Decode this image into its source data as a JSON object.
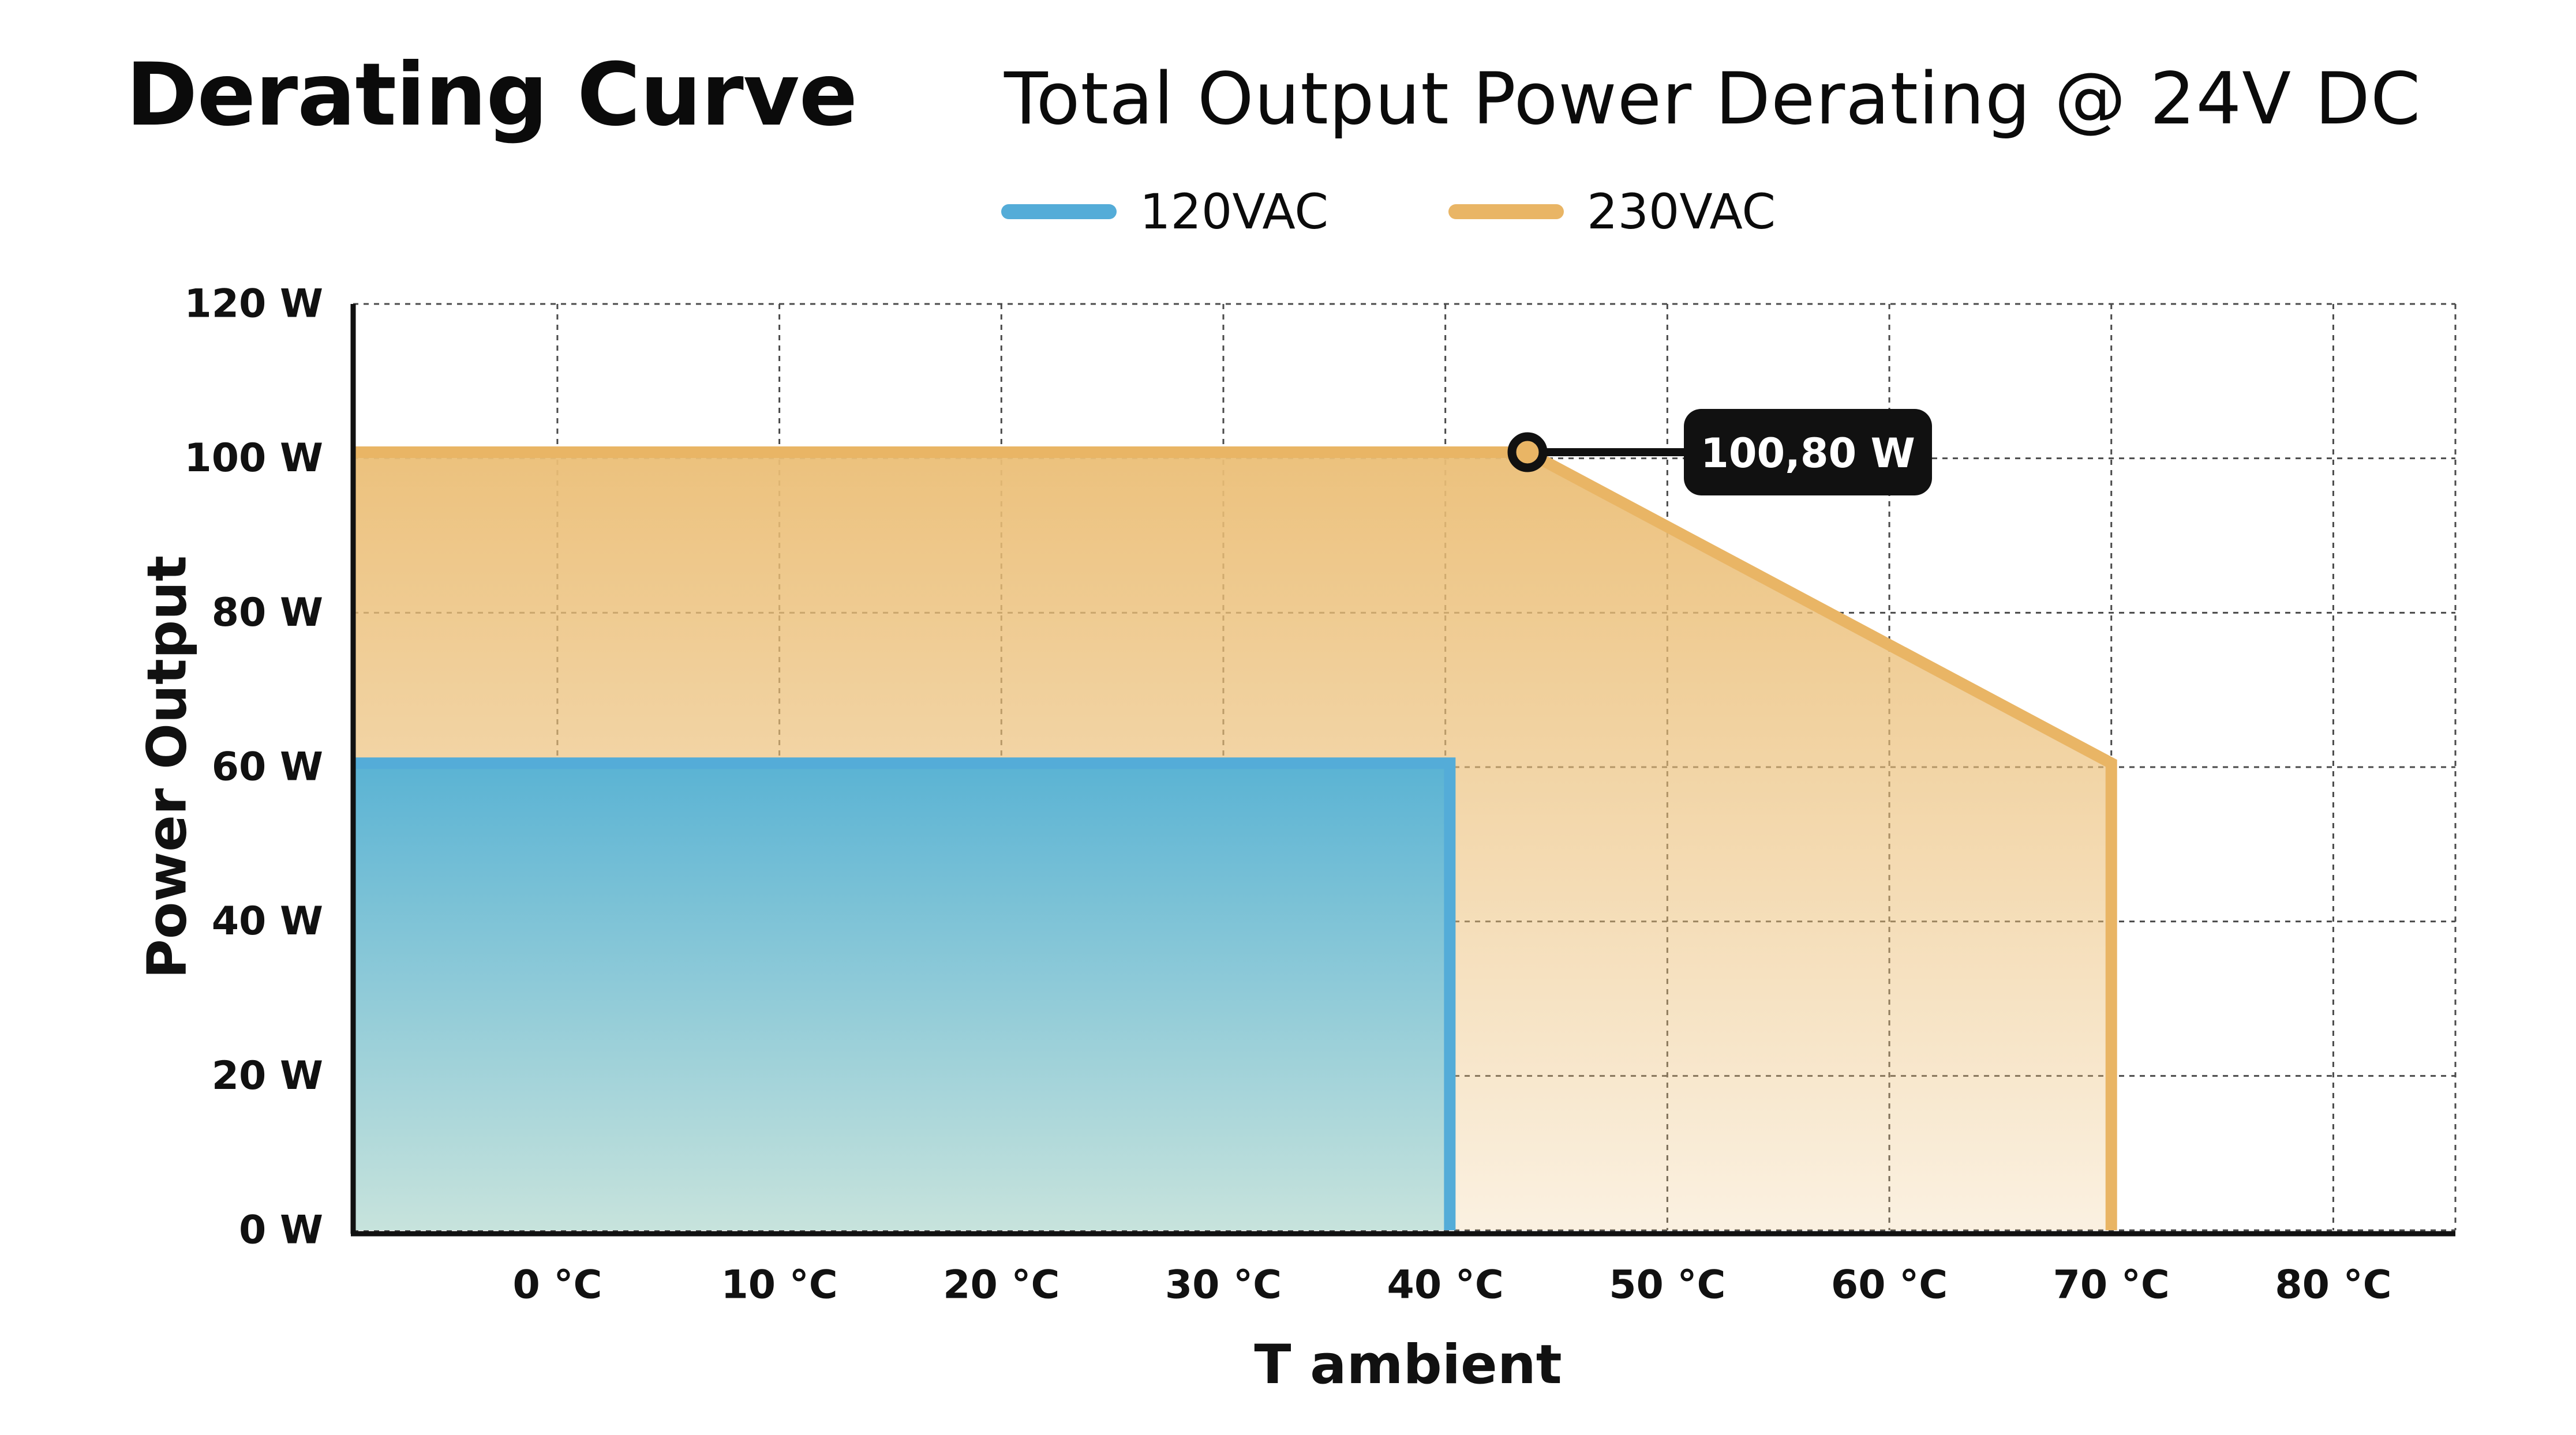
{
  "header": {
    "page_title": "Derating Curve",
    "chart_title": "Total Output Power Derating @ 24V DC"
  },
  "colors": {
    "blue": "#54ACD8",
    "orange": "#E9B565",
    "grid": "#4a4a4a",
    "axis": "#111111",
    "callout_bg": "#111111"
  },
  "icons": [
    "legend-line-swatch",
    "callout-marker-circle"
  ],
  "chart_data": {
    "type": "area",
    "title": "Total Output Power Derating @ 24V DC",
    "xlabel": "T ambient",
    "ylabel": "Power Output",
    "xlim": [
      -9.2,
      85.5
    ],
    "ylim": [
      0,
      120
    ],
    "x_ticks": [
      0,
      10,
      20,
      30,
      40,
      50,
      60,
      70,
      80
    ],
    "x_tick_labels": [
      "0 °C",
      "10 °C",
      "20 °C",
      "30 °C",
      "40 °C",
      "50 °C",
      "60 °C",
      "70 °C",
      "80 °C"
    ],
    "y_ticks": [
      0,
      20,
      40,
      60,
      80,
      100,
      120
    ],
    "y_tick_labels": [
      "0 W",
      "20 W",
      "40 W",
      "60 W",
      "80 W",
      "100 W",
      "120 W"
    ],
    "grid": true,
    "legend": "top-center",
    "series": [
      {
        "name": "120VAC",
        "color": "#54ACD8",
        "points": [
          [
            -9.2,
            60.5
          ],
          [
            40.2,
            60.5
          ],
          [
            40.2,
            0
          ]
        ]
      },
      {
        "name": "230VAC",
        "color": "#E9B565",
        "points": [
          [
            -9.2,
            100.8
          ],
          [
            43.7,
            100.8
          ],
          [
            70,
            60.5
          ],
          [
            70,
            0
          ]
        ]
      }
    ],
    "annotations": [
      {
        "x": 43.7,
        "y": 100.8,
        "text": "100,80 W"
      }
    ]
  }
}
